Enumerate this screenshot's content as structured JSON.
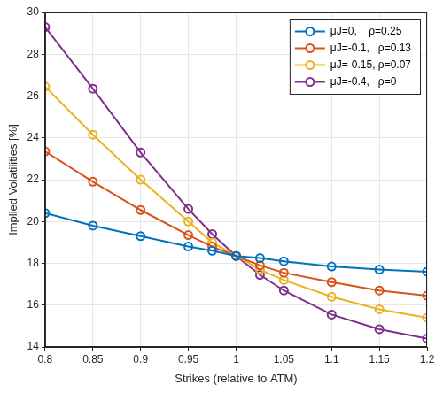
{
  "chart_data": {
    "type": "line",
    "x_label": "Strikes (relative to ATM)",
    "y_label": "Implied Volatilities [%]",
    "x": [
      0.8,
      0.85,
      0.9,
      0.95,
      0.975,
      1,
      1.025,
      1.05,
      1.1,
      1.15,
      1.2
    ],
    "series": [
      {
        "name": "μJ=0,    ρ=0.25",
        "color": "#0072bd",
        "marker": "circle",
        "values": [
          20.4,
          19.8,
          19.3,
          18.8,
          18.6,
          18.35,
          18.25,
          18.1,
          17.85,
          17.7,
          17.6
        ]
      },
      {
        "name": "μJ=-0.1,   ρ=0.13",
        "color": "#d95319",
        "marker": "circle",
        "values": [
          23.35,
          21.9,
          20.55,
          19.35,
          18.8,
          18.35,
          17.9,
          17.55,
          17.1,
          16.7,
          16.45
        ]
      },
      {
        "name": "μJ=-0.15, ρ=0.07",
        "color": "#edb120",
        "marker": "circle",
        "values": [
          26.45,
          24.15,
          22.0,
          20.0,
          19.0,
          18.35,
          17.7,
          17.2,
          16.4,
          15.8,
          15.4
        ]
      },
      {
        "name": "μJ=-0.4,   ρ=0",
        "color": "#7e2f8e",
        "marker": "circle",
        "values": [
          29.3,
          26.35,
          23.3,
          20.6,
          19.4,
          18.35,
          17.45,
          16.7,
          15.55,
          14.85,
          14.4
        ]
      }
    ],
    "xlim": [
      0.8,
      1.2
    ],
    "xticks": [
      0.8,
      0.85,
      0.9,
      0.95,
      1,
      1.05,
      1.1,
      1.15,
      1.2
    ],
    "ylim": [
      14,
      30
    ],
    "yticks": [
      14,
      16,
      18,
      20,
      22,
      24,
      26,
      28,
      30
    ],
    "grid": true,
    "legend": "top-right"
  }
}
